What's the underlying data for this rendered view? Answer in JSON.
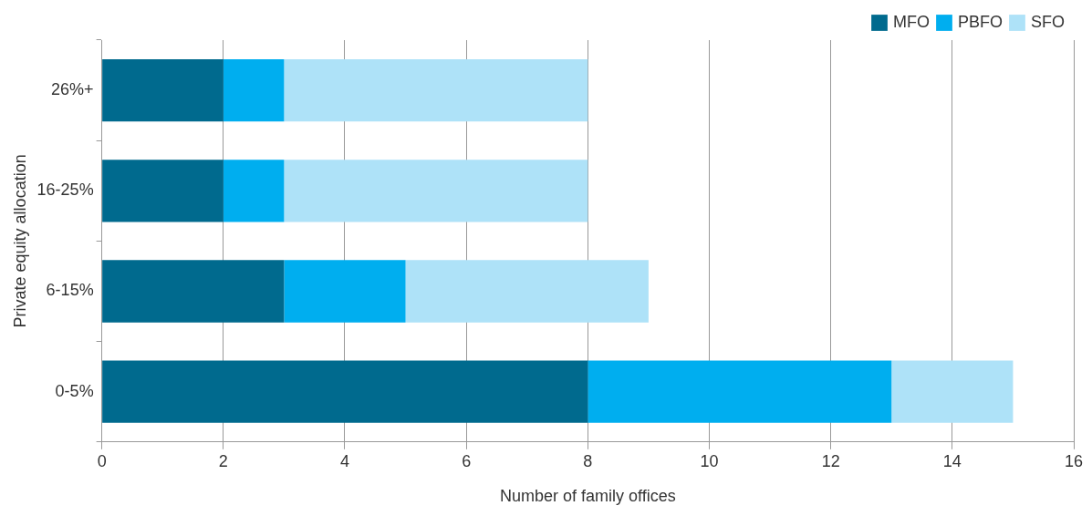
{
  "chart_data": {
    "type": "bar",
    "orientation": "horizontal",
    "stacked": true,
    "xlabel": "Number of family offices",
    "ylabel": "Private equity allocation",
    "categories": [
      "26%+",
      "16-25%",
      "6-15%",
      "0-5%"
    ],
    "series": [
      {
        "name": "MFO",
        "color": "#006a8e",
        "values": [
          2,
          2,
          3,
          8
        ]
      },
      {
        "name": "PBFO",
        "color": "#00aeef",
        "values": [
          1,
          1,
          2,
          5
        ]
      },
      {
        "name": "SFO",
        "color": "#aee2f8",
        "values": [
          5,
          5,
          4,
          2
        ]
      }
    ],
    "xlim": [
      0,
      16
    ],
    "xticks": [
      0,
      2,
      4,
      6,
      8,
      10,
      12,
      14,
      16
    ],
    "grid": "x",
    "legend": "top right"
  }
}
